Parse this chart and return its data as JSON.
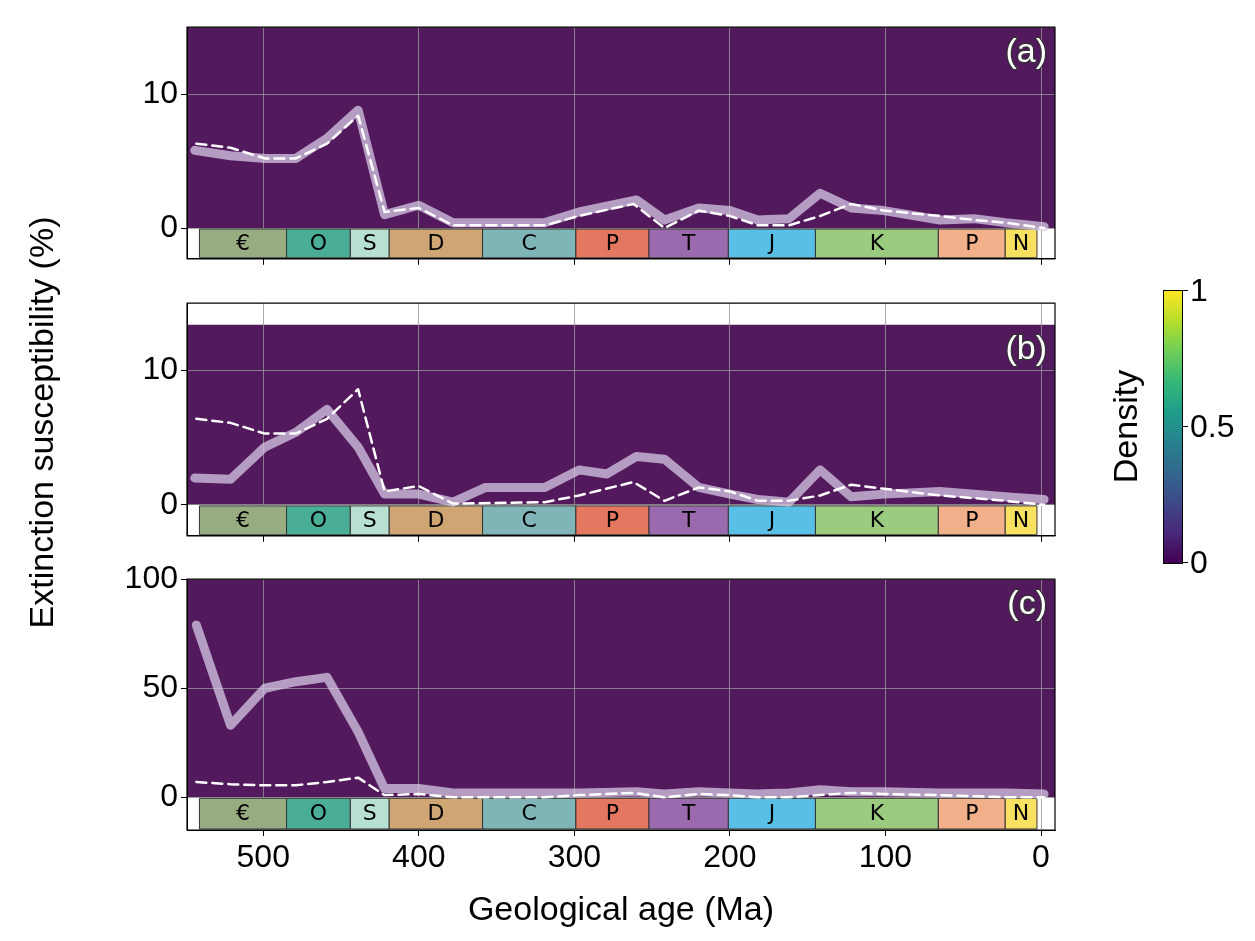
{
  "chart_data": [
    {
      "type": "line",
      "xlim": [
        549,
        -9
      ],
      "xticks": [
        500,
        400,
        300,
        200,
        100,
        0
      ],
      "ylim": [
        -2.3,
        15
      ],
      "yticks": [
        0,
        10
      ],
      "grid": true,
      "legend": false,
      "tick_labels": "y",
      "marker": "none",
      "annotations": [
        "(a)"
      ],
      "clabel": "Density",
      "clim": [
        0,
        1
      ],
      "cticks": [
        0,
        0.5,
        1
      ],
      "bands": [
        {
          "axis": "y",
          "from": 0,
          "to": 15,
          "color": "#53195d"
        },
        {
          "axis": "x",
          "from": 541,
          "to": 485,
          "label": "€",
          "color": "#98ac82"
        },
        {
          "axis": "x",
          "from": 485,
          "to": 444,
          "label": "O",
          "color": "#4aae97"
        },
        {
          "axis": "x",
          "from": 444,
          "to": 419,
          "label": "S",
          "color": "#b8e0d0"
        },
        {
          "axis": "x",
          "from": 419,
          "to": 359,
          "label": "D",
          "color": "#cea573"
        },
        {
          "axis": "x",
          "from": 359,
          "to": 299,
          "label": "C",
          "color": "#80b5b8"
        },
        {
          "axis": "x",
          "from": 299,
          "to": 252,
          "label": "P",
          "color": "#e3775f"
        },
        {
          "axis": "x",
          "from": 252,
          "to": 201,
          "label": "T",
          "color": "#9b6aae"
        },
        {
          "axis": "x",
          "from": 201,
          "to": 145,
          "label": "J",
          "color": "#5abfe6"
        },
        {
          "axis": "x",
          "from": 145,
          "to": 66,
          "label": "K",
          "color": "#9bcb7f"
        },
        {
          "axis": "x",
          "from": 66,
          "to": 23,
          "label": "P",
          "color": "#f1b08a"
        },
        {
          "axis": "x",
          "from": 23,
          "to": 2.6,
          "label": "N",
          "color": "#f8e161"
        }
      ],
      "series": [
        {
          "color": "#d9cde6",
          "line_style": "solid",
          "x": [
            544,
            521,
            499,
            479,
            459,
            439,
            422,
            400,
            378,
            319,
            297,
            260,
            242,
            220,
            200,
            182,
            162,
            142,
            122,
            101,
            65,
            43,
            23,
            -2
          ],
          "values": [
            5.8,
            5.4,
            5.2,
            5.2,
            6.7,
            8.8,
            1.0,
            1.7,
            0.4,
            0.4,
            1.2,
            2.1,
            0.6,
            1.5,
            1.3,
            0.6,
            0.7,
            2.6,
            1.5,
            1.3,
            0.6,
            0.7,
            0.4,
            0.1
          ]
        },
        {
          "color": "#ffffff",
          "line_style": "dashed",
          "x": [
            543,
            521,
            499,
            479,
            459,
            439,
            422,
            400,
            378,
            319,
            297,
            262,
            242,
            220,
            200,
            182,
            162,
            142,
            122,
            101,
            65,
            43,
            23,
            -2
          ],
          "values": [
            6.3,
            6.0,
            5.2,
            5.2,
            6.3,
            8.4,
            1.2,
            1.5,
            0.2,
            0.2,
            0.9,
            1.8,
            0,
            1.3,
            0.9,
            0.2,
            0.2,
            0.9,
            1.8,
            1.3,
            0.9,
            0.6,
            0.4,
            0
          ]
        }
      ]
    },
    {
      "type": "line",
      "xlim": [
        549,
        -9
      ],
      "xticks": [
        500,
        400,
        300,
        200,
        100,
        0
      ],
      "ylim": [
        -2.3,
        15
      ],
      "yticks": [
        0,
        10
      ],
      "grid": true,
      "legend": false,
      "tick_labels": "y",
      "marker": "none",
      "annotations": [
        "(b)"
      ],
      "ylabel": "Extinction susceptibility (%)",
      "bands": [
        {
          "axis": "y",
          "from": 0,
          "to": 13.4,
          "color": "#53195d"
        },
        {
          "axis": "x",
          "from": 541,
          "to": 485,
          "label": "€",
          "color": "#98ac82"
        },
        {
          "axis": "x",
          "from": 485,
          "to": 444,
          "label": "O",
          "color": "#4aae97"
        },
        {
          "axis": "x",
          "from": 444,
          "to": 419,
          "label": "S",
          "color": "#b8e0d0"
        },
        {
          "axis": "x",
          "from": 419,
          "to": 359,
          "label": "D",
          "color": "#cea573"
        },
        {
          "axis": "x",
          "from": 359,
          "to": 299,
          "label": "C",
          "color": "#80b5b8"
        },
        {
          "axis": "x",
          "from": 299,
          "to": 252,
          "label": "P",
          "color": "#e3775f"
        },
        {
          "axis": "x",
          "from": 252,
          "to": 201,
          "label": "T",
          "color": "#9b6aae"
        },
        {
          "axis": "x",
          "from": 201,
          "to": 145,
          "label": "J",
          "color": "#5abfe6"
        },
        {
          "axis": "x",
          "from": 145,
          "to": 66,
          "label": "K",
          "color": "#9bcb7f"
        },
        {
          "axis": "x",
          "from": 66,
          "to": 23,
          "label": "P",
          "color": "#f1b08a"
        },
        {
          "axis": "x",
          "from": 23,
          "to": 2.6,
          "label": "N",
          "color": "#f8e161"
        }
      ],
      "series": [
        {
          "color": "#d9cde6",
          "line_style": "solid",
          "x": [
            544,
            521,
            499,
            479,
            459,
            439,
            422,
            400,
            378,
            357,
            319,
            297,
            279,
            260,
            242,
            220,
            200,
            182,
            162,
            142,
            122,
            101,
            65,
            43,
            23,
            -2
          ],
          "values": [
            2.0,
            1.9,
            4.3,
            5.4,
            7.1,
            4.3,
            0.8,
            0.8,
            0.2,
            1.3,
            1.3,
            2.6,
            2.3,
            3.6,
            3.4,
            1.3,
            0.8,
            0.4,
            0.2,
            2.6,
            0.6,
            0.8,
            1.0,
            0.8,
            0.6,
            0.4
          ]
        },
        {
          "color": "#ffffff",
          "line_style": "dashed",
          "x": [
            543,
            521,
            499,
            479,
            459,
            439,
            422,
            400,
            378,
            319,
            297,
            262,
            242,
            220,
            200,
            182,
            162,
            142,
            122,
            101,
            65,
            43,
            23,
            -2
          ],
          "values": [
            6.4,
            6.1,
            5.3,
            5.3,
            6.4,
            8.6,
            1.0,
            1.4,
            0.1,
            0.2,
            0.7,
            1.7,
            0.3,
            1.3,
            1.0,
            0.3,
            0.3,
            0.7,
            1.5,
            1.2,
            0.7,
            0.5,
            0.3,
            0
          ]
        }
      ]
    },
    {
      "type": "line",
      "xlim": [
        549,
        -9
      ],
      "xticks": [
        500,
        400,
        300,
        200,
        100,
        0
      ],
      "ylim": [
        -15,
        100
      ],
      "yticks": [
        0,
        50,
        100
      ],
      "grid": true,
      "legend": false,
      "marker": "none",
      "annotations": [
        "(c)"
      ],
      "xlabel": "Geological age (Ma)",
      "bands": [
        {
          "axis": "y",
          "from": 0,
          "to": 100,
          "color": "#53195d"
        },
        {
          "axis": "x",
          "from": 541,
          "to": 485,
          "label": "€",
          "color": "#98ac82"
        },
        {
          "axis": "x",
          "from": 485,
          "to": 444,
          "label": "O",
          "color": "#4aae97"
        },
        {
          "axis": "x",
          "from": 444,
          "to": 419,
          "label": "S",
          "color": "#b8e0d0"
        },
        {
          "axis": "x",
          "from": 419,
          "to": 359,
          "label": "D",
          "color": "#cea573"
        },
        {
          "axis": "x",
          "from": 359,
          "to": 299,
          "label": "C",
          "color": "#80b5b8"
        },
        {
          "axis": "x",
          "from": 299,
          "to": 252,
          "label": "P",
          "color": "#e3775f"
        },
        {
          "axis": "x",
          "from": 252,
          "to": 201,
          "label": "T",
          "color": "#9b6aae"
        },
        {
          "axis": "x",
          "from": 201,
          "to": 145,
          "label": "J",
          "color": "#5abfe6"
        },
        {
          "axis": "x",
          "from": 145,
          "to": 66,
          "label": "K",
          "color": "#9bcb7f"
        },
        {
          "axis": "x",
          "from": 66,
          "to": 23,
          "label": "P",
          "color": "#f1b08a"
        },
        {
          "axis": "x",
          "from": 23,
          "to": 2.6,
          "label": "N",
          "color": "#f8e161"
        }
      ],
      "series": [
        {
          "color": "#d9cde6",
          "line_style": "solid",
          "x": [
            543,
            521,
            499,
            479,
            459,
            439,
            422,
            400,
            378,
            319,
            297,
            260,
            242,
            220,
            200,
            182,
            162,
            142,
            122,
            101,
            65,
            43,
            23,
            -2
          ],
          "values": [
            79,
            33,
            50,
            53,
            55,
            30,
            4,
            4,
            2,
            2,
            2,
            2.5,
            1.5,
            2.5,
            2,
            1.5,
            2,
            3.5,
            2.5,
            2.5,
            2,
            2,
            2,
            1.5
          ]
        },
        {
          "color": "#ffffff",
          "line_style": "dashed",
          "x": [
            543,
            521,
            499,
            479,
            459,
            439,
            422,
            400,
            378,
            319,
            297,
            262,
            242,
            220,
            200,
            182,
            162,
            142,
            122,
            101,
            65,
            43,
            23,
            -2
          ],
          "values": [
            7,
            6,
            5.5,
            5.5,
            7,
            9,
            1,
            1.5,
            0,
            0,
            1,
            2,
            0,
            1.5,
            1,
            0,
            0,
            1,
            2,
            1.5,
            1,
            0.5,
            0,
            0
          ]
        }
      ]
    }
  ]
}
